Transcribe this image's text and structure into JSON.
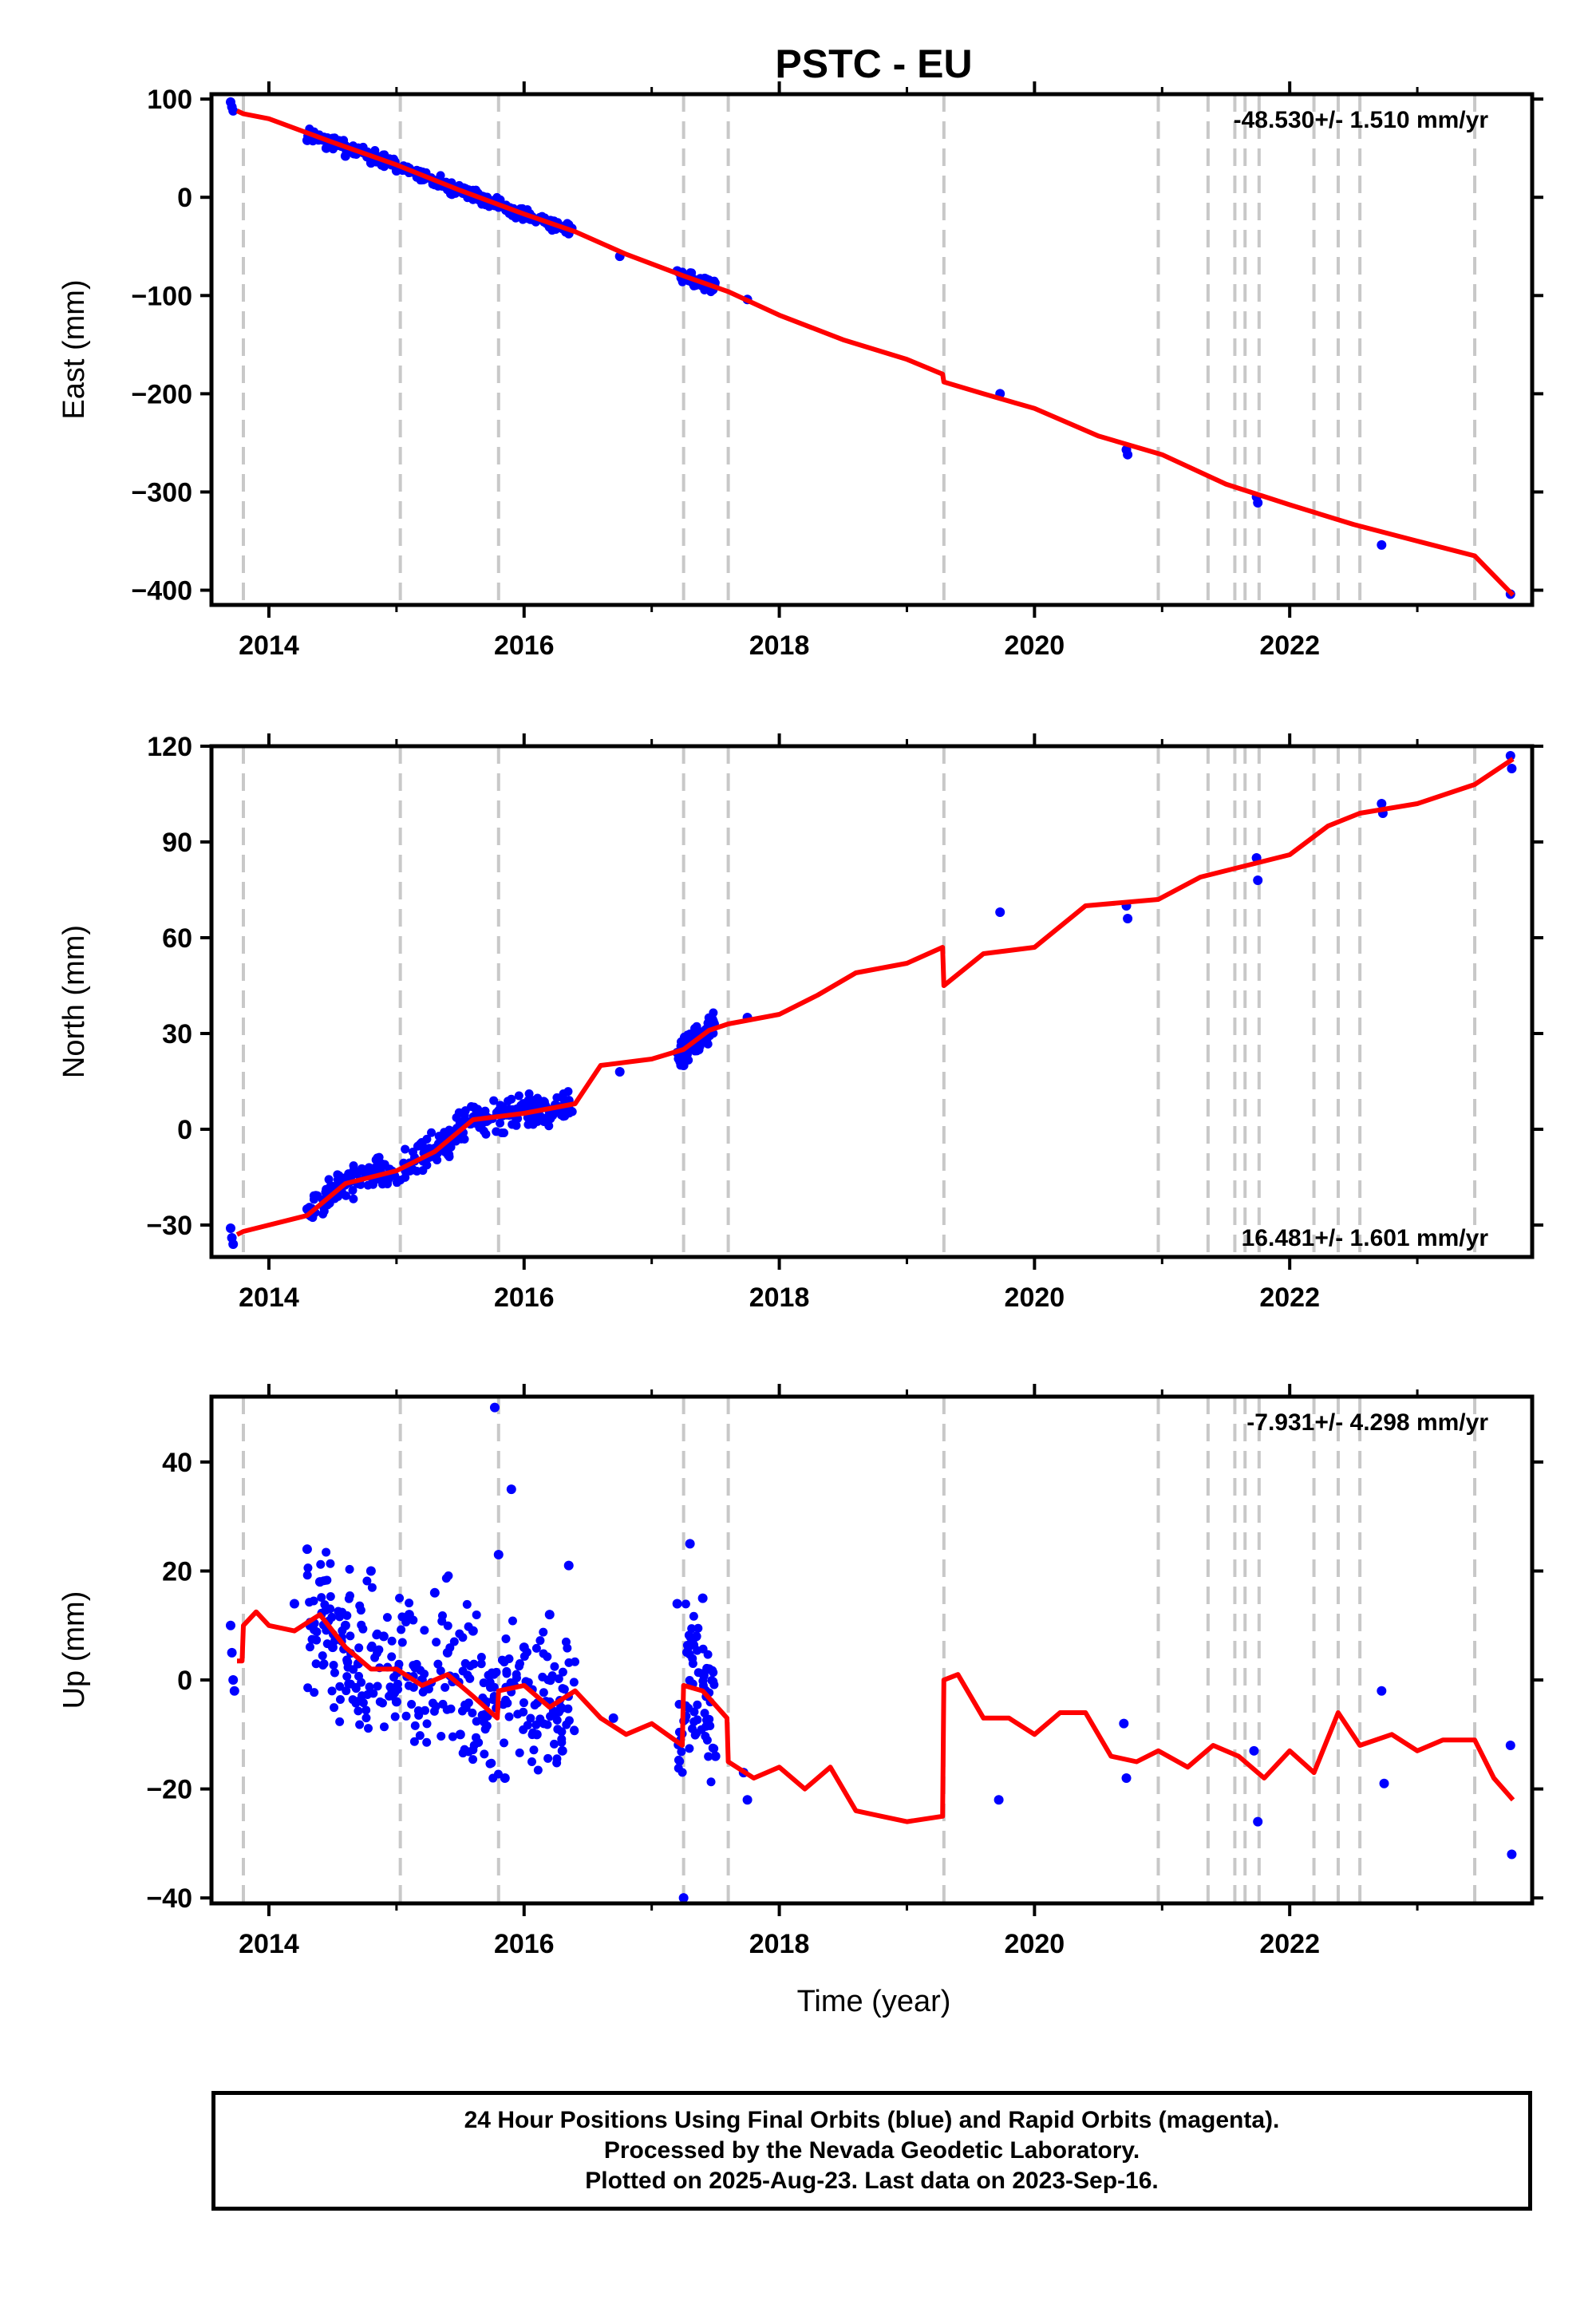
{
  "title": "PSTC - EU",
  "xlabel": "Time (year)",
  "colors": {
    "data": "#0000ff",
    "model": "#ff0000",
    "break_line": "#c8c8c8",
    "frame": "#000000"
  },
  "x_ticks": [
    2014,
    2016,
    2018,
    2020,
    2022
  ],
  "footer": {
    "line1": "24 Hour Positions Using Final Orbits (blue) and Rapid Orbits (magenta).",
    "line2": "Processed by the Nevada Geodetic Laboratory.",
    "line3": "Plotted on 2025-Aug-23. Last data on 2023-Sep-16."
  },
  "chart_data": [
    {
      "type": "scatter",
      "component": "east",
      "ylabel": "East (mm)",
      "rate_label": "-48.530+/- 1.510 mm/yr",
      "xlim": [
        2013.55,
        2023.9
      ],
      "ylim": [
        -415,
        105
      ],
      "y_ticks": [
        100,
        0,
        -100,
        -200,
        -300,
        -400
      ],
      "y_tick_labels": [
        "100",
        "0",
        "−100",
        "−200",
        "−300",
        "−400"
      ],
      "breaks": [
        2013.8,
        2015.03,
        2015.8,
        2017.25,
        2017.6,
        2019.29,
        2020.97,
        2021.36,
        2021.57,
        2021.65,
        2021.76,
        2022.19,
        2022.38,
        2022.55,
        2023.45
      ],
      "model_line": {
        "x": [
          2013.75,
          2013.8,
          2014.0,
          2014.5,
          2015.0,
          2015.5,
          2016.0,
          2016.4,
          2016.8,
          2017.25,
          2017.6,
          2018.0,
          2018.5,
          2019.0,
          2019.28,
          2019.29,
          2019.6,
          2020.0,
          2020.5,
          2021.0,
          2021.5,
          2022.0,
          2022.5,
          2023.0,
          2023.45,
          2023.75
        ],
        "y": [
          88,
          85,
          80,
          56,
          33,
          7,
          -17,
          -35,
          -58,
          -80,
          -96,
          -120,
          -145,
          -165,
          -180,
          -188,
          -200,
          -215,
          -243,
          -262,
          -292,
          -313,
          -333,
          -350,
          -365,
          -405
        ]
      },
      "data_points": {
        "x": [
          2013.7,
          2013.71,
          2013.72,
          2014.3,
          2014.45,
          2014.6,
          2014.8,
          2015.0,
          2015.2,
          2015.4,
          2015.6,
          2015.8,
          2016.0,
          2016.2,
          2016.35,
          2016.75,
          2017.2,
          2017.3,
          2017.4,
          2017.48,
          2017.75,
          2019.73,
          2020.72,
          2020.73,
          2021.74,
          2021.75,
          2022.72,
          2023.73
        ],
        "y": [
          97,
          92,
          88,
          58,
          50,
          42,
          35,
          27,
          18,
          8,
          -2,
          -10,
          -18,
          -26,
          -37,
          -60,
          -75,
          -82,
          -88,
          -94,
          -104,
          -200,
          -257,
          -262,
          -305,
          -311,
          -354,
          -404
        ]
      }
    },
    {
      "type": "scatter",
      "component": "north",
      "ylabel": "North (mm)",
      "rate_label": "16.481+/- 1.601 mm/yr",
      "xlim": [
        2013.55,
        2023.9
      ],
      "ylim": [
        -40,
        120
      ],
      "y_ticks": [
        120,
        90,
        60,
        30,
        0,
        -30
      ],
      "y_tick_labels": [
        "120",
        "90",
        "60",
        "30",
        "0",
        "−30"
      ],
      "breaks": [
        2013.8,
        2015.03,
        2015.8,
        2017.25,
        2017.6,
        2019.29,
        2020.97,
        2021.36,
        2021.57,
        2021.65,
        2021.76,
        2022.19,
        2022.38,
        2022.55,
        2023.45
      ],
      "model_line": {
        "x": [
          2013.75,
          2013.8,
          2014.3,
          2014.6,
          2015.0,
          2015.3,
          2015.6,
          2016.0,
          2016.4,
          2016.6,
          2017.0,
          2017.25,
          2017.45,
          2017.6,
          2018.0,
          2018.3,
          2018.6,
          2019.0,
          2019.28,
          2019.29,
          2019.6,
          2020.0,
          2020.4,
          2020.97,
          2021.3,
          2021.6,
          2022.0,
          2022.3,
          2022.55,
          2023.0,
          2023.45,
          2023.75
        ],
        "y": [
          -33,
          -32,
          -27,
          -17,
          -13,
          -7,
          3,
          5,
          8,
          20,
          22,
          25,
          31,
          33,
          36,
          42,
          49,
          52,
          57,
          45,
          55,
          57,
          70,
          72,
          79,
          82,
          86,
          95,
          99,
          102,
          108,
          116
        ]
      },
      "data_points": {
        "x": [
          2013.7,
          2013.71,
          2013.72,
          2014.3,
          2014.5,
          2014.7,
          2014.9,
          2015.1,
          2015.3,
          2015.5,
          2015.7,
          2015.9,
          2016.1,
          2016.35,
          2016.75,
          2017.2,
          2017.25,
          2017.3,
          2017.4,
          2017.48,
          2017.75,
          2019.73,
          2020.72,
          2020.73,
          2021.74,
          2021.75,
          2022.72,
          2022.73,
          2023.73,
          2023.74
        ],
        "y": [
          -31,
          -34,
          -36,
          -25,
          -18,
          -17,
          -15,
          -12,
          -6,
          2,
          4,
          5,
          6,
          9,
          18,
          24,
          20,
          27,
          30,
          33,
          35,
          68,
          70,
          66,
          85,
          78,
          102,
          99,
          117,
          113
        ]
      }
    },
    {
      "type": "scatter",
      "component": "up",
      "ylabel": "Up (mm)",
      "rate_label": "-7.931+/- 4.298 mm/yr",
      "xlim": [
        2013.55,
        2023.9
      ],
      "ylim": [
        -41,
        52
      ],
      "y_ticks": [
        40,
        20,
        0,
        -20,
        -40
      ],
      "y_tick_labels": [
        "40",
        "20",
        "0",
        "−20",
        "−40"
      ],
      "breaks": [
        2013.8,
        2015.03,
        2015.8,
        2017.25,
        2017.6,
        2019.29,
        2020.97,
        2021.36,
        2021.57,
        2021.65,
        2021.76,
        2022.19,
        2022.38,
        2022.55,
        2023.45
      ],
      "model_line": {
        "x": [
          2013.75,
          2013.79,
          2013.8,
          2013.9,
          2014.0,
          2014.2,
          2014.4,
          2014.6,
          2014.8,
          2015.0,
          2015.2,
          2015.4,
          2015.6,
          2015.79,
          2015.8,
          2016.0,
          2016.2,
          2016.4,
          2016.6,
          2016.8,
          2017.0,
          2017.24,
          2017.25,
          2017.4,
          2017.59,
          2017.6,
          2017.8,
          2018.0,
          2018.2,
          2018.4,
          2018.6,
          2018.8,
          2019.0,
          2019.28,
          2019.29,
          2019.4,
          2019.6,
          2019.8,
          2020.0,
          2020.2,
          2020.4,
          2020.6,
          2020.8,
          2020.97,
          2021.2,
          2021.4,
          2021.6,
          2021.8,
          2022.0,
          2022.19,
          2022.38,
          2022.55,
          2022.8,
          2023.0,
          2023.2,
          2023.45,
          2023.6,
          2023.75
        ],
        "y": [
          3.5,
          3.5,
          10,
          12.5,
          10,
          9,
          12,
          6,
          2,
          2,
          -1,
          1,
          -3,
          -7,
          -2,
          -1,
          -5,
          -2,
          -7,
          -10,
          -8,
          -12,
          -1,
          -2,
          -7,
          -15,
          -18,
          -16,
          -20,
          -16,
          -24,
          -25,
          -26,
          -25,
          0,
          1,
          -7,
          -7,
          -10,
          -6,
          -6,
          -14,
          -15,
          -13,
          -16,
          -12,
          -14,
          -18,
          -13,
          -17,
          -6,
          -12,
          -10,
          -13,
          -11,
          -11,
          -18,
          -22
        ]
      },
      "data_points": {
        "x": [
          2013.7,
          2013.71,
          2013.72,
          2013.73,
          2014.2,
          2014.3,
          2014.4,
          2014.5,
          2014.6,
          2014.7,
          2014.8,
          2014.9,
          2015.0,
          2015.1,
          2015.2,
          2015.3,
          2015.4,
          2015.5,
          2015.6,
          2015.7,
          2015.77,
          2015.8,
          2015.85,
          2015.9,
          2016.0,
          2016.1,
          2016.2,
          2016.3,
          2016.35,
          2016.7,
          2017.2,
          2017.25,
          2017.3,
          2017.35,
          2017.4,
          2017.45,
          2017.5,
          2017.72,
          2017.75,
          2019.72,
          2020.7,
          2020.72,
          2021.72,
          2021.75,
          2022.72,
          2022.74,
          2023.73,
          2023.74
        ],
        "y": [
          10,
          5,
          0,
          -2,
          14,
          24,
          18,
          6,
          10,
          3,
          20,
          8,
          -4,
          12,
          0,
          16,
          5,
          -10,
          9,
          -4,
          50,
          23,
          -18,
          35,
          6,
          -10,
          12,
          -13,
          21,
          -7,
          14,
          -40,
          25,
          8,
          15,
          2,
          -14,
          -17,
          -22,
          -22,
          -8,
          -18,
          -13,
          -26,
          -2,
          -19,
          -12,
          -32
        ]
      }
    }
  ]
}
